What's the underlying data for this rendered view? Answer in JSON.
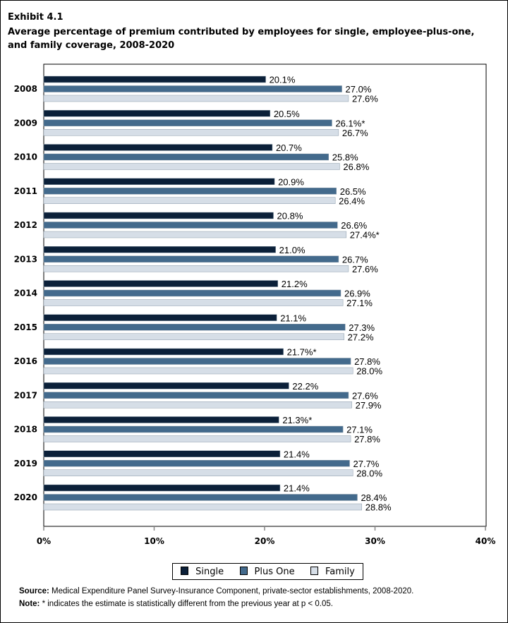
{
  "exhibit": "Exhibit 4.1",
  "title": "Average percentage of premium contributed by employees for single, employee-plus-one, and family coverage, 2008-2020",
  "chart_data": {
    "type": "bar",
    "orientation": "horizontal",
    "categories": [
      "2008",
      "2009",
      "2010",
      "2011",
      "2012",
      "2013",
      "2014",
      "2015",
      "2016",
      "2017",
      "2018",
      "2019",
      "2020"
    ],
    "series": [
      {
        "name": "Single",
        "color": "#0b2039",
        "values": [
          20.1,
          20.5,
          20.7,
          20.9,
          20.8,
          21.0,
          21.2,
          21.1,
          21.7,
          22.2,
          21.3,
          21.4,
          21.4
        ],
        "labels": [
          "20.1%",
          "20.5%",
          "20.7%",
          "20.9%",
          "20.8%",
          "21.0%",
          "21.2%",
          "21.1%",
          "21.7%*",
          "22.2%",
          "21.3%*",
          "21.4%",
          "21.4%"
        ]
      },
      {
        "name": "Plus One",
        "color": "#436a8c",
        "values": [
          27.0,
          26.1,
          25.8,
          26.5,
          26.6,
          26.7,
          26.9,
          27.3,
          27.8,
          27.6,
          27.1,
          27.7,
          28.4
        ],
        "labels": [
          "27.0%",
          "26.1%*",
          "25.8%",
          "26.5%",
          "26.6%",
          "26.7%",
          "26.9%",
          "27.3%",
          "27.8%",
          "27.6%",
          "27.1%",
          "27.7%",
          "28.4%"
        ]
      },
      {
        "name": "Family",
        "color": "#d6dee7",
        "values": [
          27.6,
          26.7,
          26.8,
          26.4,
          27.4,
          27.6,
          27.1,
          27.2,
          28.0,
          27.9,
          27.8,
          28.0,
          28.8
        ],
        "labels": [
          "27.6%",
          "26.7%",
          "26.8%",
          "26.4%",
          "27.4%*",
          "27.6%",
          "27.1%",
          "27.2%",
          "28.0%",
          "27.9%",
          "27.8%",
          "28.0%",
          "28.8%"
        ]
      }
    ],
    "xlim": [
      0,
      40
    ],
    "xticks": [
      "0%",
      "10%",
      "20%",
      "30%",
      "40%"
    ],
    "grid": false,
    "legend_placement": "bottom"
  },
  "footer": {
    "source_label": "Source:",
    "source_text": " Medical Expenditure Panel Survey-Insurance Component, private-sector establishments, 2008-2020.",
    "note_label": "Note:",
    "note_text": " * indicates the estimate is statistically different from the previous year at p < 0.05."
  }
}
